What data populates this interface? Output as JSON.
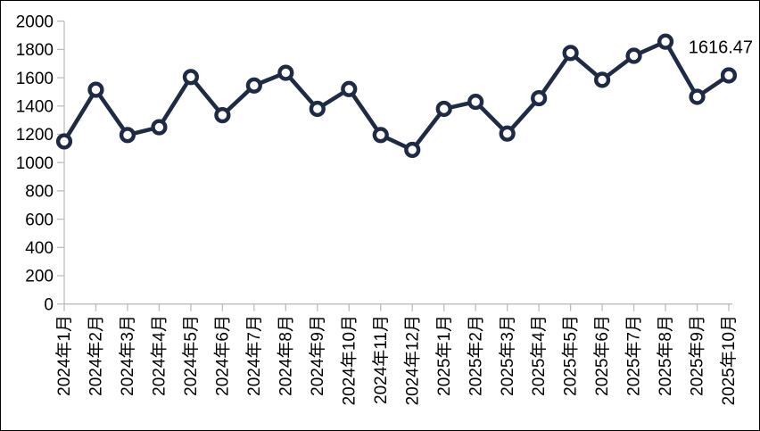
{
  "chart_data": {
    "type": "line",
    "title": "",
    "categories": [
      "2024年1月",
      "2024年2月",
      "2024年3月",
      "2024年4月",
      "2024年5月",
      "2024年6月",
      "2024年7月",
      "2024年8月",
      "2024年9月",
      "2024年10月",
      "2024年11月",
      "2024年12月",
      "2025年1月",
      "2025年2月",
      "2025年3月",
      "2025年4月",
      "2025年5月",
      "2025年6月",
      "2025年7月",
      "2025年8月",
      "2025年9月",
      "2025年10月"
    ],
    "values": [
      1150,
      1515,
      1195,
      1250,
      1605,
      1335,
      1545,
      1635,
      1380,
      1520,
      1195,
      1090,
      1380,
      1430,
      1205,
      1455,
      1775,
      1585,
      1755,
      1855,
      1465,
      1616.47
    ],
    "last_point_label": "1616.47",
    "xlabel": "",
    "ylabel": "",
    "ylim": [
      0,
      2000
    ],
    "y_ticks": [
      0,
      200,
      400,
      600,
      800,
      1000,
      1200,
      1400,
      1600,
      1800,
      2000
    ],
    "x_label_rotation": 90,
    "grid": false,
    "legend": "none",
    "marker_style": "circle-open",
    "colors": {
      "line": "#1F2A44",
      "marker_fill": "#FFFFFF",
      "axis": "#BDBDBD",
      "text": "#000000"
    }
  }
}
